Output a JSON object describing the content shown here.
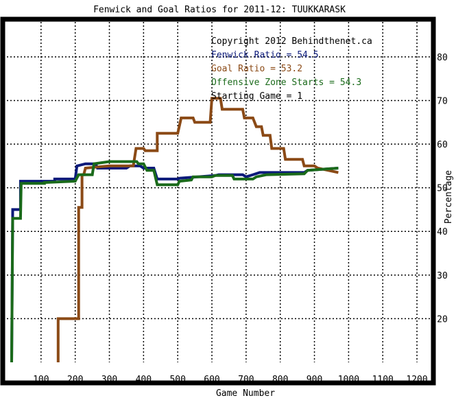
{
  "chart_data": {
    "type": "line",
    "title": "Fenwick and Goal Ratios for 2011-12: TUUKKARASK",
    "xlabel": "Game Number",
    "ylabel": "Percentage",
    "xlim": [
      0,
      1240
    ],
    "ylim": [
      10,
      88
    ],
    "x_ticks": [
      "100",
      "200",
      "300",
      "400",
      "500",
      "600",
      "700",
      "800",
      "900",
      "1000",
      "1100",
      "1200"
    ],
    "x_tick_values": [
      100,
      200,
      300,
      400,
      500,
      600,
      700,
      800,
      900,
      1000,
      1100,
      1200
    ],
    "y_ticks": [
      "20",
      "30",
      "40",
      "50",
      "60",
      "70",
      "80"
    ],
    "y_tick_values": [
      20,
      30,
      40,
      50,
      60,
      70,
      80
    ],
    "grid": true,
    "annotations": [
      {
        "text": "Copyright 2012 Behindthenet.ca",
        "color": "#000000"
      },
      {
        "text": "Fenwick Ratio = 54.5",
        "color": "#0b1a7a"
      },
      {
        "text": "Goal Ratio = 53.2",
        "color": "#8b4a16"
      },
      {
        "text": "Offensive Zone Starts = 54.3",
        "color": "#1a6a1a"
      },
      {
        "text": "Starting Game = 1",
        "color": "#000000"
      }
    ],
    "series": [
      {
        "color": "#0b1a7a",
        "points": [
          [
            14,
            10
          ],
          [
            17,
            45
          ],
          [
            40,
            45
          ],
          [
            40,
            51.5
          ],
          [
            140,
            51.5
          ],
          [
            140,
            52
          ],
          [
            200,
            52
          ],
          [
            205,
            55
          ],
          [
            230,
            55.5
          ],
          [
            260,
            55.5
          ],
          [
            265,
            54.5
          ],
          [
            350,
            54.5
          ],
          [
            360,
            55
          ],
          [
            390,
            55
          ],
          [
            400,
            54.5
          ],
          [
            430,
            54.5
          ],
          [
            440,
            52
          ],
          [
            500,
            52
          ],
          [
            505,
            52.2
          ],
          [
            610,
            52.8
          ],
          [
            620,
            53
          ],
          [
            690,
            53
          ],
          [
            700,
            52.5
          ],
          [
            720,
            53
          ],
          [
            740,
            53.5
          ],
          [
            870,
            53.5
          ],
          [
            880,
            54
          ],
          [
            970,
            54.5
          ]
        ]
      },
      {
        "color": "#8b4a16",
        "points": [
          [
            150,
            10
          ],
          [
            150,
            20
          ],
          [
            210,
            20
          ],
          [
            210,
            45.5
          ],
          [
            220,
            45.5
          ],
          [
            220,
            53
          ],
          [
            225,
            53
          ],
          [
            230,
            54.5
          ],
          [
            300,
            55
          ],
          [
            370,
            55
          ],
          [
            378,
            59
          ],
          [
            400,
            59
          ],
          [
            405,
            58.5
          ],
          [
            440,
            58.5
          ],
          [
            440,
            62.5
          ],
          [
            500,
            62.5
          ],
          [
            510,
            66
          ],
          [
            545,
            66
          ],
          [
            550,
            65
          ],
          [
            595,
            65
          ],
          [
            600,
            70.5
          ],
          [
            625,
            70.5
          ],
          [
            630,
            68
          ],
          [
            690,
            68
          ],
          [
            695,
            66
          ],
          [
            720,
            66
          ],
          [
            730,
            64
          ],
          [
            745,
            64
          ],
          [
            750,
            62
          ],
          [
            770,
            62
          ],
          [
            775,
            59
          ],
          [
            810,
            59
          ],
          [
            815,
            56.5
          ],
          [
            865,
            56.5
          ],
          [
            870,
            55
          ],
          [
            900,
            55
          ],
          [
            910,
            54.5
          ],
          [
            970,
            53.5
          ]
        ]
      },
      {
        "color": "#1a6a1a",
        "points": [
          [
            14,
            10
          ],
          [
            17,
            43
          ],
          [
            40,
            43
          ],
          [
            42,
            51
          ],
          [
            110,
            51
          ],
          [
            110,
            51.2
          ],
          [
            200,
            51.5
          ],
          [
            210,
            53
          ],
          [
            250,
            53
          ],
          [
            255,
            55.5
          ],
          [
            300,
            56
          ],
          [
            350,
            56
          ],
          [
            355,
            56
          ],
          [
            380,
            56
          ],
          [
            385,
            55.5
          ],
          [
            400,
            55.5
          ],
          [
            410,
            54
          ],
          [
            430,
            54
          ],
          [
            440,
            50.7
          ],
          [
            500,
            50.7
          ],
          [
            505,
            51.5
          ],
          [
            540,
            51.8
          ],
          [
            545,
            52.5
          ],
          [
            600,
            52.5
          ],
          [
            610,
            52.8
          ],
          [
            660,
            52.8
          ],
          [
            665,
            52
          ],
          [
            720,
            52
          ],
          [
            730,
            52.5
          ],
          [
            760,
            53
          ],
          [
            870,
            53.2
          ],
          [
            880,
            54
          ],
          [
            970,
            54.5
          ]
        ]
      }
    ]
  }
}
